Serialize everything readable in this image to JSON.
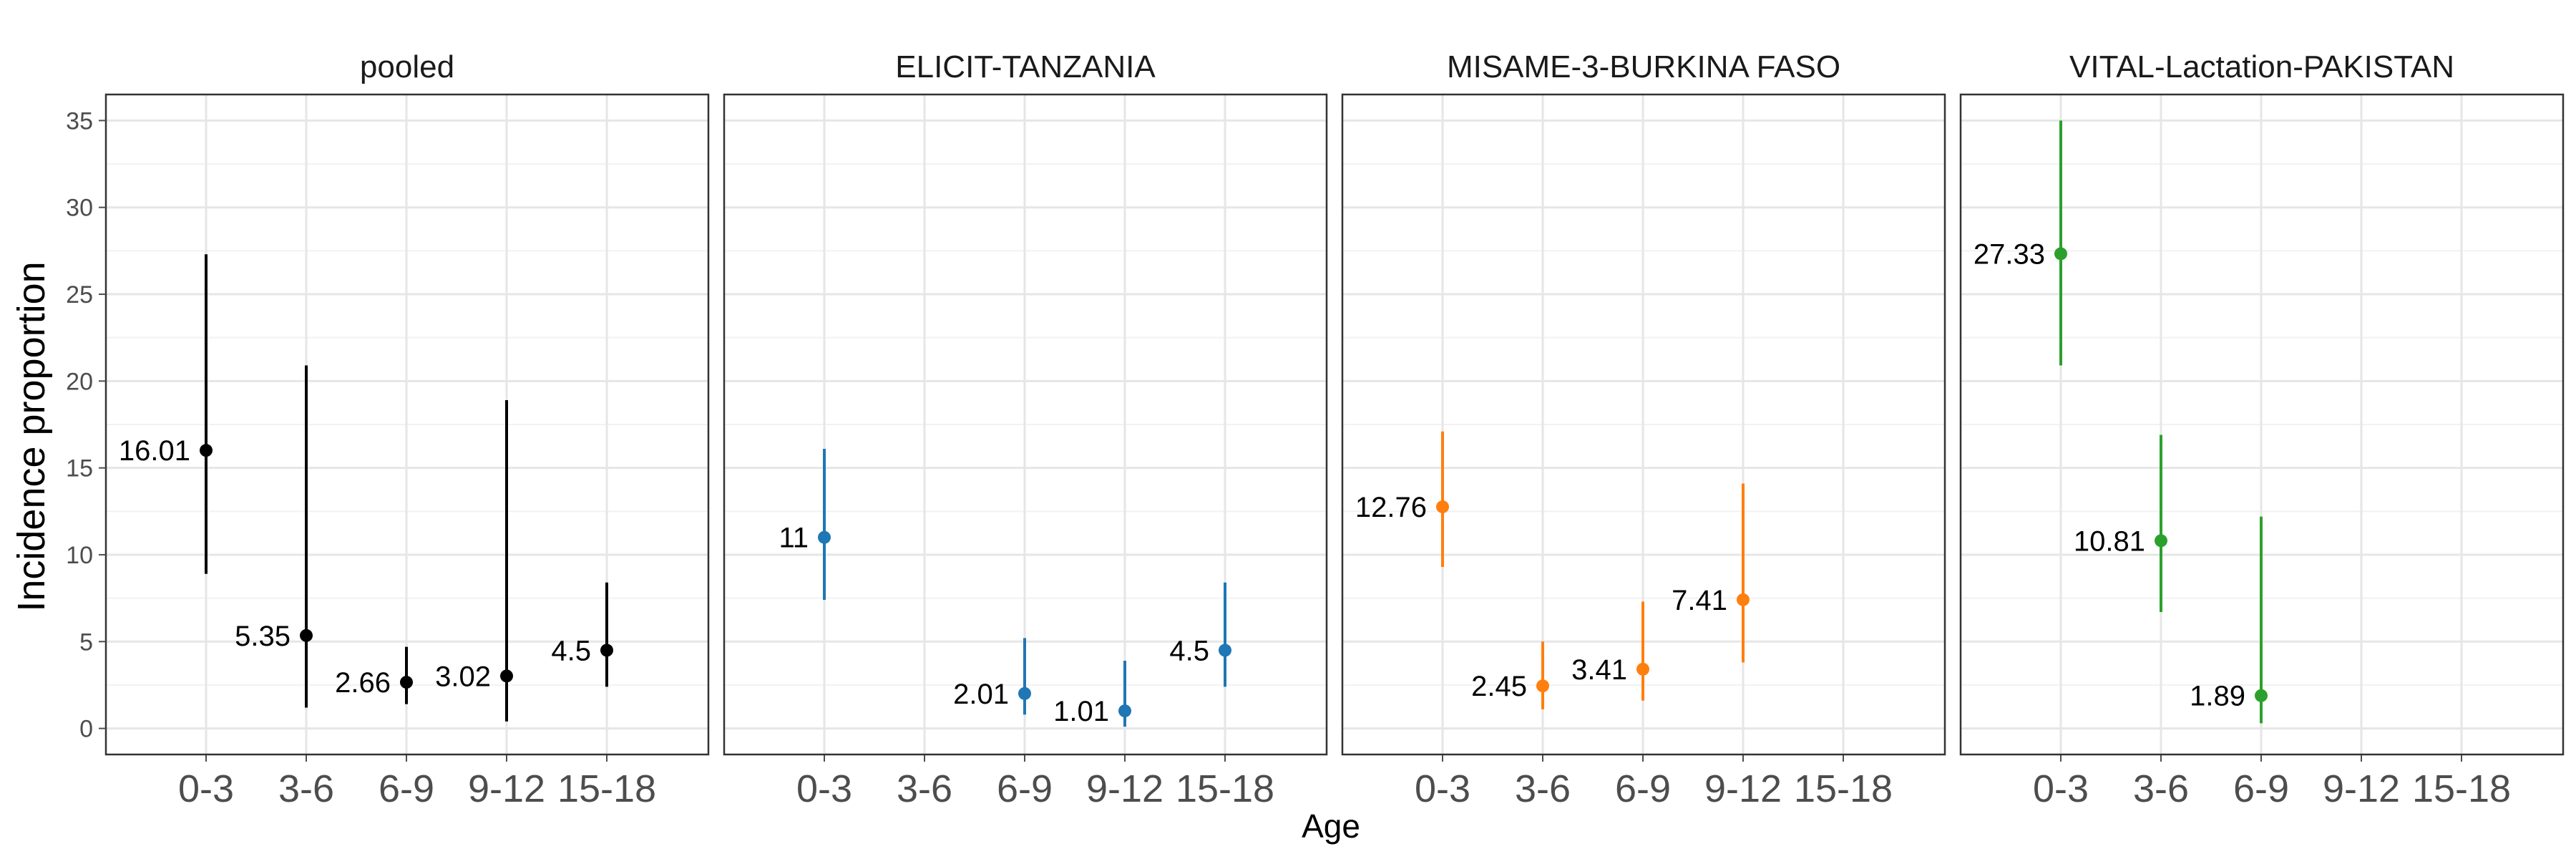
{
  "chart_data": {
    "type": "scatter",
    "xlabel": "Age",
    "ylabel": "Incidence proportion",
    "ylim": [
      -1.5,
      36.5
    ],
    "yticks": [
      0,
      5,
      10,
      15,
      20,
      25,
      30,
      35
    ],
    "categories": [
      "0-3",
      "3-6",
      "6-9",
      "9-12",
      "15-18"
    ],
    "grid": true,
    "panels": [
      {
        "title": "pooled",
        "color": "#000000",
        "points": [
          {
            "x": "0-3",
            "y": 16.01,
            "lo": 8.9,
            "hi": 27.3,
            "label": "16.01"
          },
          {
            "x": "3-6",
            "y": 5.35,
            "lo": 1.2,
            "hi": 20.9,
            "label": "5.35"
          },
          {
            "x": "6-9",
            "y": 2.66,
            "lo": 1.4,
            "hi": 4.7,
            "label": "2.66"
          },
          {
            "x": "9-12",
            "y": 3.02,
            "lo": 0.4,
            "hi": 18.9,
            "label": "3.02"
          },
          {
            "x": "15-18",
            "y": 4.5,
            "lo": 2.4,
            "hi": 8.4,
            "label": "4.5"
          }
        ]
      },
      {
        "title": "ELICIT-TANZANIA",
        "color": "#1f77b4",
        "points": [
          {
            "x": "0-3",
            "y": 11,
            "lo": 7.4,
            "hi": 16.1,
            "label": "11"
          },
          {
            "x": "6-9",
            "y": 2.01,
            "lo": 0.8,
            "hi": 5.2,
            "label": "2.01"
          },
          {
            "x": "9-12",
            "y": 1.01,
            "lo": 0.1,
            "hi": 3.9,
            "label": "1.01"
          },
          {
            "x": "15-18",
            "y": 4.5,
            "lo": 2.4,
            "hi": 8.4,
            "label": "4.5"
          }
        ]
      },
      {
        "title": "MISAME-3-BURKINA FASO",
        "color": "#ff7f0e",
        "points": [
          {
            "x": "0-3",
            "y": 12.76,
            "lo": 9.3,
            "hi": 17.1,
            "label": "12.76"
          },
          {
            "x": "3-6",
            "y": 2.45,
            "lo": 1.1,
            "hi": 5.0,
            "label": "2.45"
          },
          {
            "x": "6-9",
            "y": 3.41,
            "lo": 1.6,
            "hi": 7.3,
            "label": "3.41"
          },
          {
            "x": "9-12",
            "y": 7.41,
            "lo": 3.8,
            "hi": 14.1,
            "label": "7.41"
          }
        ]
      },
      {
        "title": "VITAL-Lactation-PAKISTAN",
        "color": "#2ca02c",
        "points": [
          {
            "x": "0-3",
            "y": 27.33,
            "lo": 20.9,
            "hi": 35.0,
            "label": "27.33"
          },
          {
            "x": "3-6",
            "y": 10.81,
            "lo": 6.7,
            "hi": 16.9,
            "label": "10.81"
          },
          {
            "x": "6-9",
            "y": 1.89,
            "lo": 0.3,
            "hi": 12.2,
            "label": "1.89"
          }
        ]
      }
    ]
  }
}
